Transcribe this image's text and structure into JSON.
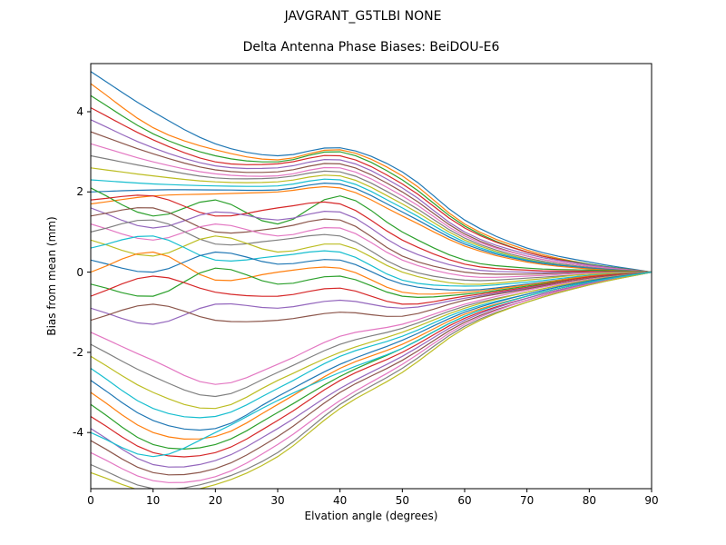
{
  "title": "JAVGRANT_G5TLBI NONE",
  "chart_data": {
    "type": "line",
    "title": "JAVGRANT_G5TLBI NONE",
    "subtitle": "Delta Antenna Phase Biases: BeiDOU-E6",
    "xlabel": "Elvation angle (degrees)",
    "ylabel": "Bias from mean (mm)",
    "xlim": [
      0,
      90
    ],
    "ylim": [
      -5.4,
      5.2
    ],
    "xticks": [
      0,
      10,
      20,
      30,
      40,
      50,
      60,
      70,
      80,
      90
    ],
    "yticks": [
      -4,
      -2,
      0,
      2,
      4
    ],
    "grid": false,
    "legend": "none",
    "background": "#ffffff",
    "axis_color": "#000000",
    "colors": [
      "#1f77b4",
      "#ff7f0e",
      "#2ca02c",
      "#d62728",
      "#9467bd",
      "#8c564b",
      "#e377c2",
      "#7f7f7f",
      "#bcbd22",
      "#17becf"
    ],
    "x": [
      0,
      10,
      20,
      30,
      40,
      50,
      60,
      70,
      80,
      90
    ],
    "series": [
      [
        5.0,
        4.0,
        3.2,
        2.9,
        3.1,
        2.5,
        1.3,
        0.6,
        0.25,
        0
      ],
      [
        4.7,
        3.6,
        3.05,
        2.8,
        3.05,
        2.4,
        1.2,
        0.55,
        0.2,
        0
      ],
      [
        4.4,
        3.45,
        2.9,
        2.75,
        3.0,
        2.3,
        1.15,
        0.5,
        0.2,
        0
      ],
      [
        4.1,
        3.3,
        2.75,
        2.7,
        2.9,
        2.2,
        1.1,
        0.5,
        0.18,
        0
      ],
      [
        3.8,
        3.1,
        2.65,
        2.6,
        2.8,
        2.1,
        1.0,
        0.45,
        0.18,
        0
      ],
      [
        3.5,
        2.95,
        2.55,
        2.5,
        2.7,
        2.0,
        0.95,
        0.4,
        0.15,
        0
      ],
      [
        3.2,
        2.75,
        2.45,
        2.4,
        2.6,
        1.9,
        0.9,
        0.4,
        0.15,
        0
      ],
      [
        2.9,
        2.6,
        2.35,
        2.35,
        2.5,
        1.8,
        0.85,
        0.35,
        0.12,
        0
      ],
      [
        2.6,
        2.4,
        2.25,
        2.25,
        2.4,
        1.7,
        0.8,
        0.32,
        0.1,
        0
      ],
      [
        2.3,
        2.2,
        2.15,
        2.15,
        2.3,
        1.6,
        0.75,
        0.3,
        0.1,
        0
      ],
      [
        2.0,
        2.05,
        2.05,
        2.05,
        2.2,
        1.5,
        0.7,
        0.28,
        0.1,
        0
      ],
      [
        1.7,
        1.9,
        1.95,
        2.0,
        2.1,
        1.4,
        0.65,
        0.25,
        0.08,
        0
      ],
      [
        2.1,
        1.4,
        1.8,
        1.2,
        1.9,
        1.0,
        0.3,
        0.1,
        0.05,
        0
      ],
      [
        1.8,
        1.9,
        1.4,
        1.6,
        1.7,
        0.8,
        0.2,
        0.05,
        0.02,
        0
      ],
      [
        1.6,
        1.1,
        1.5,
        1.3,
        1.5,
        0.6,
        0.1,
        0.0,
        0,
        0
      ],
      [
        1.4,
        1.6,
        1.0,
        1.1,
        1.3,
        0.4,
        0.0,
        -0.05,
        0,
        0
      ],
      [
        1.2,
        0.8,
        1.2,
        0.9,
        1.1,
        0.3,
        -0.1,
        -0.1,
        -0.02,
        0
      ],
      [
        1.0,
        1.3,
        0.7,
        0.8,
        0.9,
        0.1,
        -0.2,
        -0.15,
        -0.05,
        0
      ],
      [
        0.8,
        0.4,
        0.9,
        0.5,
        0.7,
        0.0,
        -0.3,
        -0.2,
        -0.05,
        0
      ],
      [
        0.6,
        0.9,
        0.3,
        0.4,
        0.5,
        -0.2,
        -0.35,
        -0.25,
        -0.08,
        0
      ],
      [
        0.3,
        0.0,
        0.5,
        0.2,
        0.3,
        -0.3,
        -0.45,
        -0.3,
        -0.1,
        0
      ],
      [
        0.0,
        0.5,
        -0.2,
        0.0,
        0.1,
        -0.5,
        -0.5,
        -0.32,
        -0.1,
        0
      ],
      [
        -0.3,
        -0.6,
        0.1,
        -0.3,
        -0.1,
        -0.6,
        -0.55,
        -0.35,
        -0.12,
        0
      ],
      [
        -0.6,
        -0.1,
        -0.5,
        -0.6,
        -0.4,
        -0.8,
        -0.6,
        -0.38,
        -0.12,
        0
      ],
      [
        -0.9,
        -1.3,
        -0.8,
        -0.9,
        -0.7,
        -0.9,
        -0.65,
        -0.4,
        -0.15,
        0
      ],
      [
        -1.2,
        -0.8,
        -1.2,
        -1.2,
        -1.0,
        -1.1,
        -0.7,
        -0.42,
        -0.15,
        0
      ],
      [
        -1.5,
        -2.2,
        -2.8,
        -2.3,
        -1.6,
        -1.3,
        -0.8,
        -0.45,
        -0.18,
        0
      ],
      [
        -1.8,
        -2.6,
        -3.1,
        -2.5,
        -1.8,
        -1.4,
        -0.85,
        -0.5,
        -0.2,
        0
      ],
      [
        -2.1,
        -3.0,
        -3.4,
        -2.7,
        -2.0,
        -1.5,
        -0.9,
        -0.5,
        -0.2,
        0
      ],
      [
        -2.4,
        -3.4,
        -3.6,
        -2.9,
        -2.1,
        -1.6,
        -0.95,
        -0.55,
        -0.22,
        0
      ],
      [
        -2.7,
        -3.7,
        -3.9,
        -3.1,
        -2.3,
        -1.7,
        -1.0,
        -0.55,
        -0.22,
        0
      ],
      [
        -3.0,
        -4.0,
        -4.1,
        -3.3,
        -2.4,
        -1.8,
        -1.05,
        -0.6,
        -0.25,
        0
      ],
      [
        -3.3,
        -4.3,
        -4.3,
        -3.5,
        -2.6,
        -1.9,
        -1.1,
        -0.6,
        -0.25,
        0
      ],
      [
        -3.6,
        -4.5,
        -4.5,
        -3.7,
        -2.7,
        -2.0,
        -1.15,
        -0.65,
        -0.28,
        0
      ],
      [
        -3.9,
        -4.8,
        -4.7,
        -3.9,
        -2.9,
        -2.1,
        -1.2,
        -0.65,
        -0.28,
        0
      ],
      [
        -4.2,
        -5.0,
        -4.9,
        -4.1,
        -3.0,
        -2.2,
        -1.25,
        -0.7,
        -0.3,
        0
      ],
      [
        -4.5,
        -5.2,
        -5.1,
        -4.3,
        -3.2,
        -2.3,
        -1.3,
        -0.7,
        -0.3,
        0
      ],
      [
        -4.8,
        -5.4,
        -5.2,
        -4.5,
        -3.3,
        -2.4,
        -1.35,
        -0.75,
        -0.32,
        0
      ],
      [
        -5.0,
        -5.5,
        -5.3,
        -4.6,
        -3.4,
        -2.5,
        -1.4,
        -0.75,
        -0.32,
        0
      ],
      [
        -4.0,
        -4.6,
        -4.0,
        -3.2,
        -2.5,
        -1.9,
        -1.1,
        -0.6,
        -0.25,
        0
      ]
    ]
  }
}
